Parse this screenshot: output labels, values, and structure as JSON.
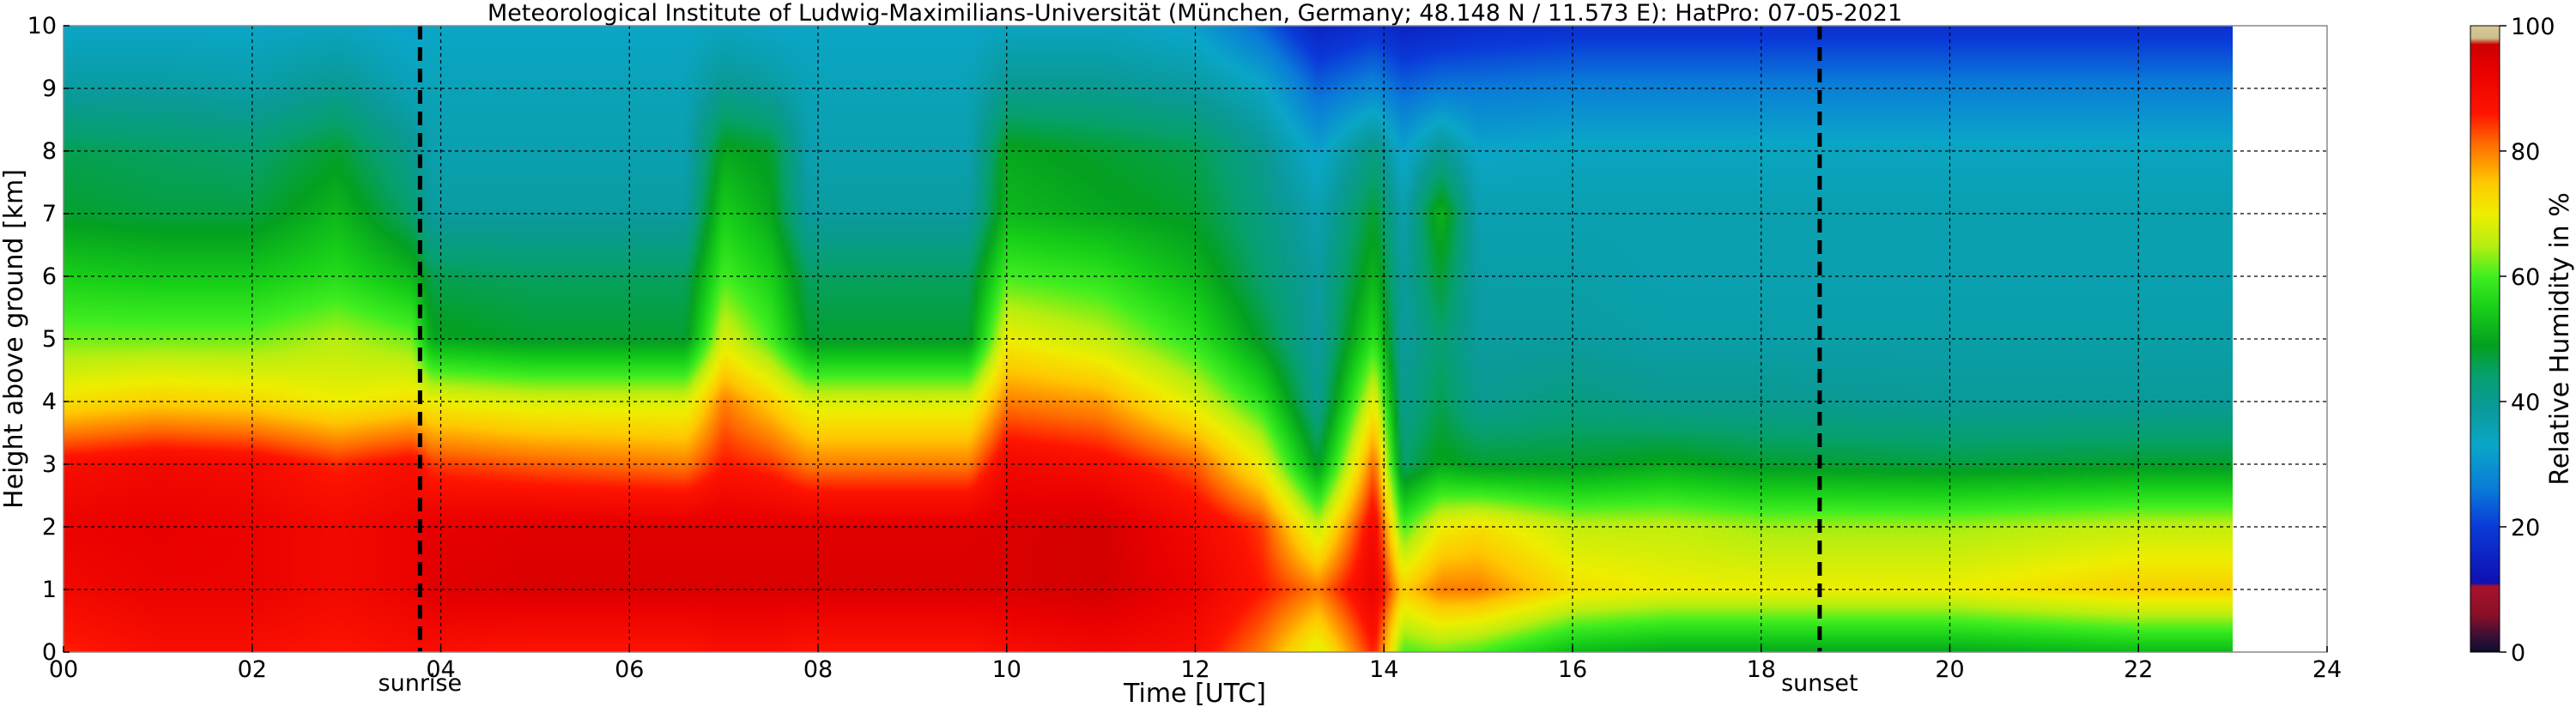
{
  "chart_data": {
    "type": "heatmap",
    "title": "Meteorological Institute of Ludwig-Maximilians-Universität (München, Germany; 48.148 N / 11.573 E):    HatPro: 07-05-2021",
    "xlabel": "Time [UTC]",
    "ylabel": "Height above ground [km]",
    "colorbar_label": "Relative Humidity in %",
    "xlim": [
      0,
      24
    ],
    "ylim": [
      0,
      10
    ],
    "data_end_hour": 23.0,
    "x_ticks": [
      {
        "value": 0,
        "label": "00"
      },
      {
        "value": 2,
        "label": "02"
      },
      {
        "value": 4,
        "label": "04"
      },
      {
        "value": 6,
        "label": "06"
      },
      {
        "value": 8,
        "label": "08"
      },
      {
        "value": 10,
        "label": "10"
      },
      {
        "value": 12,
        "label": "12"
      },
      {
        "value": 14,
        "label": "14"
      },
      {
        "value": 16,
        "label": "16"
      },
      {
        "value": 18,
        "label": "18"
      },
      {
        "value": 20,
        "label": "20"
      },
      {
        "value": 22,
        "label": "22"
      },
      {
        "value": 24,
        "label": "24"
      }
    ],
    "y_ticks": [
      0,
      1,
      2,
      3,
      4,
      5,
      6,
      7,
      8,
      9,
      10
    ],
    "grid": true,
    "markers": [
      {
        "label": "sunrise",
        "hour": 3.78
      },
      {
        "label": "sunset",
        "hour": 18.62
      }
    ],
    "colorbar": {
      "range": [
        0,
        100
      ],
      "ticks": [
        0,
        20,
        40,
        60,
        80,
        100
      ],
      "stops": [
        [
          0,
          "#0c0c2a"
        ],
        [
          2.5,
          "#3a0f36"
        ],
        [
          6,
          "#8b1027"
        ],
        [
          10.5,
          "#a8122e"
        ],
        [
          11,
          "#1010b0"
        ],
        [
          20,
          "#0a3ad8"
        ],
        [
          26,
          "#0a7bd8"
        ],
        [
          33,
          "#0aa6c8"
        ],
        [
          39,
          "#0a9a98"
        ],
        [
          44,
          "#06a070"
        ],
        [
          49,
          "#04a020"
        ],
        [
          55,
          "#18d018"
        ],
        [
          60,
          "#40ee20"
        ],
        [
          65,
          "#b8ee10"
        ],
        [
          70,
          "#eeee00"
        ],
        [
          75,
          "#ffc800"
        ],
        [
          81,
          "#ff6e00"
        ],
        [
          86,
          "#ff1400"
        ],
        [
          93,
          "#e80000"
        ],
        [
          97,
          "#cc0000"
        ],
        [
          98,
          "#ccbe8c"
        ],
        [
          100,
          "#d8c898"
        ]
      ]
    },
    "rh_profiles": [
      {
        "hour": 0.0,
        "rh": [
          85,
          90,
          92,
          88,
          72,
          62,
          55,
          48,
          46,
          38,
          33
        ]
      },
      {
        "hour": 1.0,
        "rh": [
          88,
          92,
          93,
          90,
          74,
          62,
          54,
          47,
          45,
          38,
          33
        ]
      },
      {
        "hour": 2.0,
        "rh": [
          88,
          92,
          92,
          89,
          73,
          62,
          54,
          47,
          44,
          37,
          33
        ]
      },
      {
        "hour": 2.9,
        "rh": [
          86,
          90,
          90,
          85,
          70,
          65,
          57,
          52,
          48,
          40,
          34
        ]
      },
      {
        "hour": 3.7,
        "rh": [
          88,
          92,
          92,
          88,
          72,
          62,
          52,
          44,
          40,
          35,
          32
        ]
      },
      {
        "hour": 3.9,
        "rh": [
          88,
          94,
          93,
          84,
          70,
          50,
          46,
          38,
          36,
          35,
          33
        ]
      },
      {
        "hour": 5.0,
        "rh": [
          86,
          95,
          94,
          82,
          68,
          48,
          45,
          38,
          36,
          35,
          33
        ]
      },
      {
        "hour": 6.6,
        "rh": [
          86,
          95,
          94,
          80,
          68,
          48,
          45,
          38,
          36,
          35,
          33
        ]
      },
      {
        "hour": 7.0,
        "rh": [
          88,
          95,
          94,
          86,
          80,
          68,
          60,
          55,
          50,
          40,
          34
        ]
      },
      {
        "hour": 7.5,
        "rh": [
          88,
          95,
          94,
          84,
          74,
          60,
          55,
          50,
          48,
          38,
          33
        ]
      },
      {
        "hour": 7.9,
        "rh": [
          86,
          95,
          94,
          80,
          68,
          48,
          45,
          38,
          36,
          35,
          33
        ]
      },
      {
        "hour": 9.6,
        "rh": [
          86,
          95,
          94,
          80,
          68,
          48,
          45,
          38,
          36,
          35,
          33
        ]
      },
      {
        "hour": 10.0,
        "rh": [
          88,
          95,
          95,
          90,
          80,
          70,
          60,
          52,
          50,
          40,
          34
        ]
      },
      {
        "hour": 11.0,
        "rh": [
          90,
          96,
          96,
          88,
          78,
          66,
          58,
          50,
          48,
          40,
          34
        ]
      },
      {
        "hour": 12.0,
        "rh": [
          88,
          92,
          90,
          82,
          68,
          58,
          52,
          48,
          46,
          38,
          32
        ]
      },
      {
        "hour": 12.7,
        "rh": [
          80,
          86,
          84,
          70,
          58,
          48,
          44,
          42,
          40,
          34,
          24
        ]
      },
      {
        "hour": 13.3,
        "rh": [
          68,
          80,
          66,
          48,
          40,
          38,
          38,
          36,
          32,
          24,
          15
        ]
      },
      {
        "hour": 13.9,
        "rh": [
          86,
          92,
          90,
          82,
          70,
          58,
          52,
          48,
          42,
          28,
          18
        ]
      },
      {
        "hour": 14.2,
        "rh": [
          60,
          74,
          60,
          44,
          40,
          38,
          38,
          36,
          32,
          24,
          15
        ]
      },
      {
        "hour": 14.6,
        "rh": [
          62,
          80,
          70,
          50,
          46,
          44,
          48,
          52,
          40,
          26,
          16
        ]
      },
      {
        "hour": 15.0,
        "rh": [
          60,
          80,
          72,
          48,
          40,
          38,
          37,
          36,
          33,
          26,
          17
        ]
      },
      {
        "hour": 16.0,
        "rh": [
          52,
          72,
          66,
          48,
          42,
          38,
          37,
          36,
          34,
          27,
          18
        ]
      },
      {
        "hour": 17.0,
        "rh": [
          50,
          70,
          66,
          50,
          40,
          37,
          36,
          36,
          34,
          27,
          18
        ]
      },
      {
        "hour": 18.0,
        "rh": [
          50,
          70,
          64,
          48,
          40,
          37,
          36,
          36,
          34,
          27,
          18
        ]
      },
      {
        "hour": 20.0,
        "rh": [
          50,
          70,
          64,
          47,
          39,
          37,
          36,
          36,
          34,
          27,
          18
        ]
      },
      {
        "hour": 22.0,
        "rh": [
          52,
          74,
          66,
          48,
          39,
          37,
          36,
          36,
          34,
          27,
          18
        ]
      },
      {
        "hour": 23.0,
        "rh": [
          52,
          74,
          66,
          48,
          39,
          37,
          36,
          36,
          34,
          27,
          18
        ]
      }
    ]
  }
}
